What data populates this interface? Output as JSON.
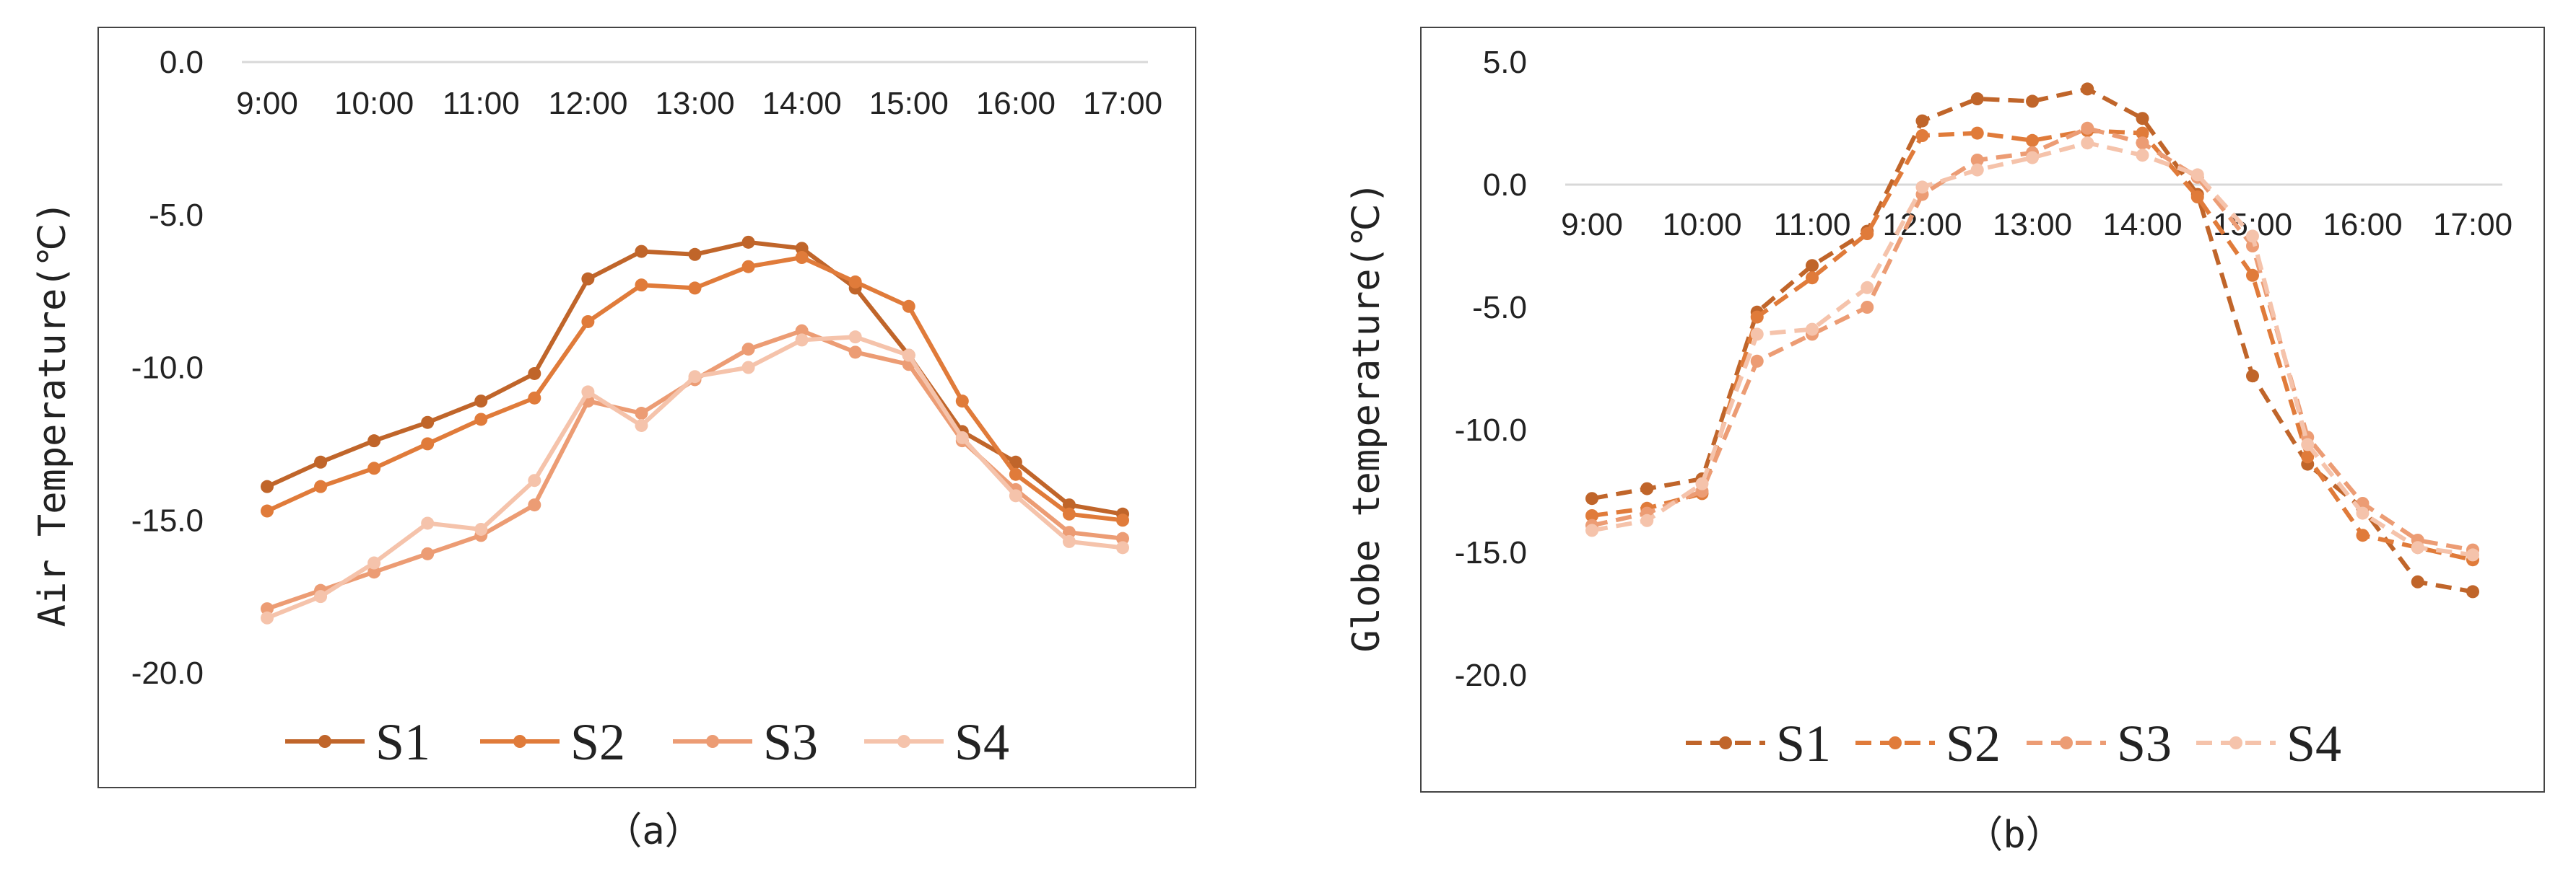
{
  "chart_data": [
    {
      "type": "line",
      "caption": "（a）",
      "ylabel": "Air Temperature(℃)",
      "xlabel": "",
      "ylim": [
        -20,
        0
      ],
      "yticks": [
        "0.0",
        "-5.0",
        "-10.0",
        "-15.0",
        "-20.0"
      ],
      "ytick_values": [
        0,
        -5,
        -10,
        -15,
        -20
      ],
      "xtick_labels": [
        "9:00",
        "10:00",
        "11:00",
        "12:00",
        "13:00",
        "14:00",
        "15:00",
        "16:00",
        "17:00"
      ],
      "x": [
        "9:00",
        "9:30",
        "10:00",
        "10:30",
        "11:00",
        "11:30",
        "12:00",
        "12:30",
        "13:00",
        "13:30",
        "14:00",
        "14:30",
        "15:00",
        "15:30",
        "16:00",
        "16:30",
        "17:00"
      ],
      "legend_position": "bottom",
      "series": [
        {
          "name": "S1",
          "color": "#c0652a",
          "dash": "solid",
          "values": [
            -13.9,
            -13.1,
            -12.4,
            -11.8,
            -11.1,
            -10.2,
            -7.1,
            -6.2,
            -6.3,
            -5.9,
            -6.1,
            -7.4,
            -9.6,
            -12.1,
            -13.1,
            -14.5,
            -14.8
          ]
        },
        {
          "name": "S2",
          "color": "#e07b3a",
          "dash": "solid",
          "values": [
            -14.7,
            -13.9,
            -13.3,
            -12.5,
            -11.7,
            -11.0,
            -8.5,
            -7.3,
            -7.4,
            -6.7,
            -6.4,
            -7.2,
            -8.0,
            -11.1,
            -13.5,
            -14.8,
            -15.0
          ]
        },
        {
          "name": "S3",
          "color": "#ec9c74",
          "dash": "solid",
          "values": [
            -17.9,
            -17.3,
            -16.7,
            -16.1,
            -15.5,
            -14.5,
            -11.1,
            -11.5,
            -10.4,
            -9.4,
            -8.8,
            -9.5,
            -9.9,
            -12.4,
            -14.0,
            -15.4,
            -15.6
          ]
        },
        {
          "name": "S4",
          "color": "#f5c3ab",
          "dash": "solid",
          "values": [
            -18.2,
            -17.5,
            -16.4,
            -15.1,
            -15.3,
            -13.7,
            -10.8,
            -11.9,
            -10.3,
            -10.0,
            -9.1,
            -9.0,
            -9.6,
            -12.3,
            -14.2,
            -15.7,
            -15.9
          ]
        }
      ]
    },
    {
      "type": "line",
      "caption": "（b）",
      "ylabel": "Globe temperature(℃)",
      "xlabel": "",
      "ylim": [
        -20,
        5
      ],
      "yticks": [
        "5.0",
        "0.0",
        "-5.0",
        "-10.0",
        "-15.0",
        "-20.0"
      ],
      "ytick_values": [
        5,
        0,
        -5,
        -10,
        -15,
        -20
      ],
      "xtick_labels": [
        "9:00",
        "10:00",
        "11:00",
        "12:00",
        "13:00",
        "14:00",
        "15:00",
        "16:00",
        "17:00"
      ],
      "x": [
        "9:00",
        "9:30",
        "10:00",
        "10:30",
        "11:00",
        "11:30",
        "12:00",
        "12:30",
        "13:00",
        "13:30",
        "14:00",
        "14:30",
        "15:00",
        "15:30",
        "16:00",
        "16:30",
        "17:00"
      ],
      "legend_position": "bottom",
      "series": [
        {
          "name": "S1",
          "color": "#c0652a",
          "dash": "dashed",
          "values": [
            -12.8,
            -12.4,
            -12.0,
            -5.2,
            -3.3,
            -1.9,
            2.6,
            3.5,
            3.4,
            3.9,
            2.7,
            -0.4,
            -7.8,
            -11.4,
            -13.2,
            -16.2,
            -16.6
          ]
        },
        {
          "name": "S2",
          "color": "#e07b3a",
          "dash": "dashed",
          "values": [
            -13.5,
            -13.2,
            -12.6,
            -5.4,
            -3.8,
            -2.0,
            2.0,
            2.1,
            1.8,
            2.2,
            2.1,
            -0.5,
            -3.7,
            -11.1,
            -14.3,
            -14.8,
            -15.3
          ]
        },
        {
          "name": "S3",
          "color": "#ec9c74",
          "dash": "dashed",
          "values": [
            -13.9,
            -13.4,
            -12.5,
            -7.2,
            -6.1,
            -5.0,
            -0.4,
            1.0,
            1.3,
            2.3,
            1.7,
            0.3,
            -2.5,
            -10.3,
            -13.0,
            -14.5,
            -14.9
          ]
        },
        {
          "name": "S4",
          "color": "#f5c3ab",
          "dash": "dashed",
          "values": [
            -14.1,
            -13.7,
            -12.2,
            -6.1,
            -5.9,
            -4.2,
            -0.1,
            0.6,
            1.1,
            1.7,
            1.2,
            0.4,
            -2.1,
            -10.6,
            -13.4,
            -14.8,
            -15.1
          ]
        }
      ]
    }
  ]
}
